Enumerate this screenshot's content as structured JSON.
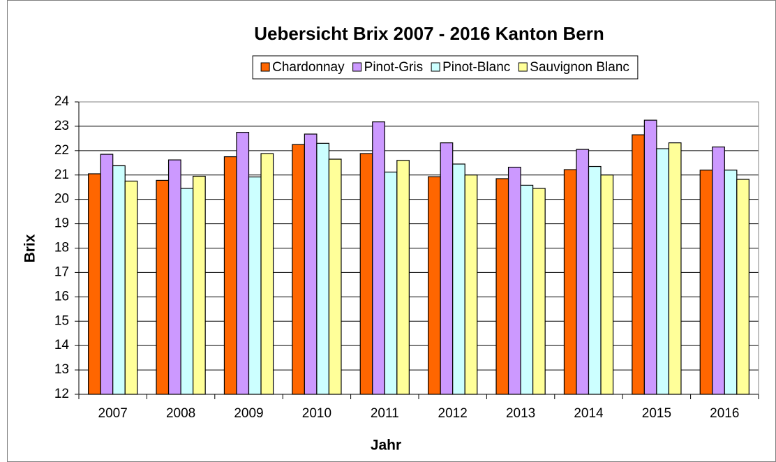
{
  "chart_data": {
    "type": "bar",
    "title": "Uebersicht Brix 2007 - 2016  Kanton Bern",
    "x_label": "Jahr",
    "y_label": "Brix",
    "categories": [
      "2007",
      "2008",
      "2009",
      "2010",
      "2011",
      "2012",
      "2013",
      "2014",
      "2015",
      "2016"
    ],
    "series": [
      {
        "name": "Chardonnay",
        "color": "#ff6600",
        "values": [
          21.05,
          20.78,
          21.75,
          22.25,
          21.88,
          20.93,
          20.85,
          21.22,
          22.65,
          21.2
        ]
      },
      {
        "name": "Pinot-Gris",
        "color": "#cc99ff",
        "values": [
          21.85,
          21.62,
          22.75,
          22.68,
          23.18,
          22.32,
          21.32,
          22.05,
          23.25,
          22.15
        ]
      },
      {
        "name": "Pinot-Blanc",
        "color": "#ccffff",
        "values": [
          21.38,
          20.45,
          20.92,
          22.3,
          21.12,
          21.45,
          20.58,
          21.35,
          22.08,
          21.2
        ]
      },
      {
        "name": "Sauvignon Blanc",
        "color": "#ffff99",
        "values": [
          20.75,
          20.95,
          21.88,
          21.65,
          21.6,
          21.0,
          20.45,
          21.0,
          22.32,
          20.82
        ]
      }
    ],
    "ylim": [
      12,
      24
    ],
    "yticks": [
      12,
      13,
      14,
      15,
      16,
      17,
      18,
      19,
      20,
      21,
      22,
      23,
      24
    ],
    "grid": true,
    "legend": "top"
  }
}
